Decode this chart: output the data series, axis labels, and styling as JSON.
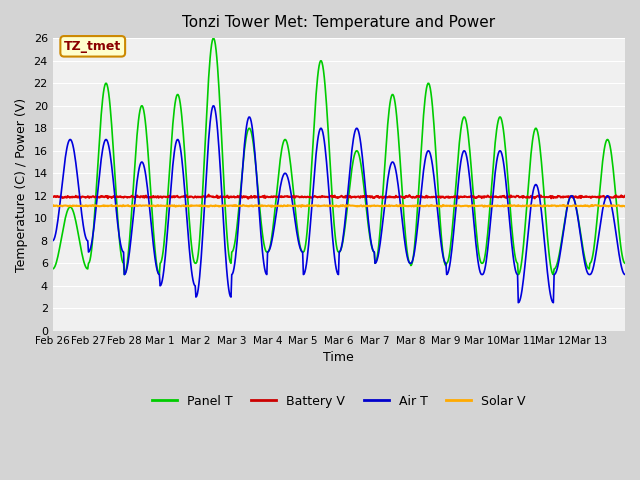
{
  "title": "Tonzi Tower Met: Temperature and Power",
  "xlabel": "Time",
  "ylabel": "Temperature (C) / Power (V)",
  "ylim": [
    0,
    26
  ],
  "yticks": [
    0,
    2,
    4,
    6,
    8,
    10,
    12,
    14,
    16,
    18,
    20,
    22,
    24,
    26
  ],
  "xtick_labels": [
    "Feb 26",
    "Feb 27",
    "Feb 28",
    "Mar 1",
    "Mar 2",
    "Mar 3",
    "Mar 4",
    "Mar 5",
    "Mar 6",
    "Mar 7",
    "Mar 8",
    "Mar 9",
    "Mar 10",
    "Mar 11",
    "Mar 12",
    "Mar 13"
  ],
  "plot_bg_color": "#f0f0f0",
  "fig_bg_color": "#d4d4d4",
  "annotation_text": "TZ_tmet",
  "annotation_fg": "#8b0000",
  "annotation_bg": "#ffffcc",
  "annotation_border": "#cc8800",
  "legend_labels": [
    "Panel T",
    "Battery V",
    "Air T",
    "Solar V"
  ],
  "legend_colors": [
    "#00cc00",
    "#cc0000",
    "#0000cc",
    "#ffaa00"
  ],
  "panel_t_color": "#00cc00",
  "battery_v_color": "#dd0000",
  "air_t_color": "#0000dd",
  "solar_v_color": "#ffaa00",
  "grid_color": "#ffffff",
  "num_days": 16,
  "points_per_day": 48
}
